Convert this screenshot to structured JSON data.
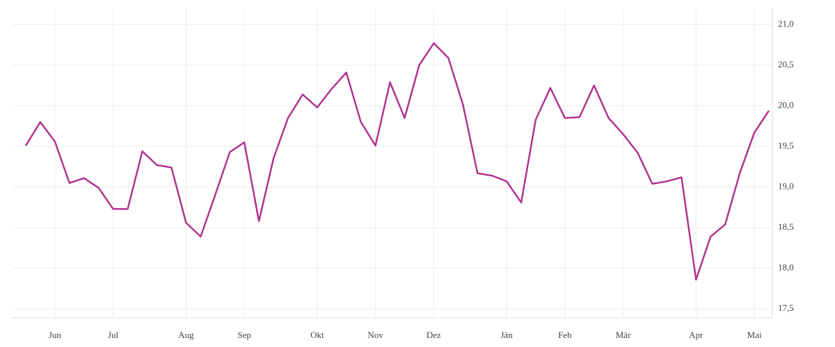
{
  "chart_data": {
    "type": "line",
    "categories": [
      null,
      null,
      "Jun",
      null,
      null,
      null,
      "Jul",
      null,
      null,
      null,
      null,
      "Aug",
      null,
      null,
      null,
      "Sep",
      null,
      null,
      null,
      null,
      "Okt",
      null,
      null,
      null,
      "Nov",
      null,
      null,
      null,
      "Dez",
      null,
      null,
      null,
      null,
      "Jän",
      null,
      null,
      null,
      "Feb",
      null,
      null,
      null,
      "Mär",
      null,
      null,
      null,
      null,
      "Apr",
      null,
      null,
      null,
      "Mai",
      null
    ],
    "series": [
      {
        "color": "#b0338f",
        "values": [
          19.51,
          19.8,
          19.56,
          19.05,
          19.11,
          18.99,
          18.73,
          18.73,
          19.44,
          19.27,
          19.24,
          18.56,
          18.39,
          18.9,
          19.43,
          19.55,
          18.58,
          19.35,
          19.85,
          20.14,
          19.98,
          20.21,
          20.41,
          19.8,
          19.51,
          20.29,
          19.85,
          20.5,
          20.77,
          20.59,
          20.02,
          19.17,
          19.14,
          19.07,
          18.81,
          19.83,
          20.22,
          19.85,
          19.86,
          20.25,
          19.85,
          19.65,
          19.42,
          19.04,
          19.07,
          19.12,
          17.86,
          18.39,
          18.54,
          19.17,
          19.67,
          19.94
        ]
      }
    ],
    "ylim": [
      17.39,
      21.2
    ],
    "yticks": [
      {
        "value": 17.5,
        "label": "17,5"
      },
      {
        "value": 18,
        "label": "18,0"
      },
      {
        "value": 18.5,
        "label": "18,5"
      },
      {
        "value": 19,
        "label": "19,0"
      },
      {
        "value": 19.5,
        "label": "19,5"
      },
      {
        "value": 20,
        "label": "20,0"
      },
      {
        "value": 20.5,
        "label": "20,5"
      },
      {
        "value": 21,
        "label": "21,0"
      }
    ],
    "grid": true
  }
}
